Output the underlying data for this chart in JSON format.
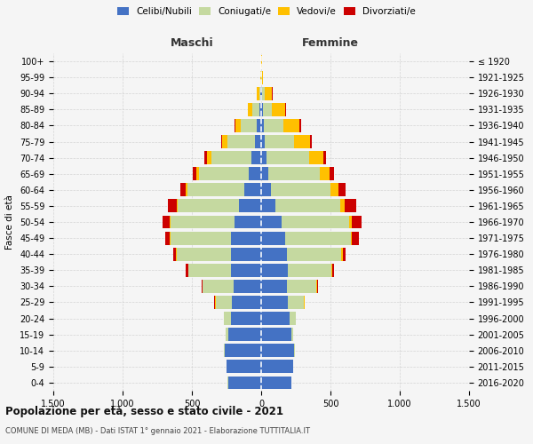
{
  "age_groups": [
    "0-4",
    "5-9",
    "10-14",
    "15-19",
    "20-24",
    "25-29",
    "30-34",
    "35-39",
    "40-44",
    "45-49",
    "50-54",
    "55-59",
    "60-64",
    "65-69",
    "70-74",
    "75-79",
    "80-84",
    "85-89",
    "90-94",
    "95-99",
    "100+"
  ],
  "birth_years": [
    "2016-2020",
    "2011-2015",
    "2006-2010",
    "2001-2005",
    "1996-2000",
    "1991-1995",
    "1986-1990",
    "1981-1985",
    "1976-1980",
    "1971-1975",
    "1966-1970",
    "1961-1965",
    "1956-1960",
    "1951-1955",
    "1946-1950",
    "1941-1945",
    "1936-1940",
    "1931-1935",
    "1926-1930",
    "1921-1925",
    "≤ 1920"
  ],
  "colors": {
    "celibe": "#4472c4",
    "coniugato": "#c5d9a0",
    "vedovo": "#ffc000",
    "divorziato": "#cc0000"
  },
  "maschi": {
    "celibe": [
      240,
      250,
      265,
      240,
      220,
      210,
      200,
      215,
      220,
      215,
      195,
      160,
      120,
      90,
      70,
      45,
      30,
      15,
      5,
      2,
      2
    ],
    "coniugato": [
      2,
      2,
      5,
      15,
      50,
      120,
      220,
      310,
      390,
      440,
      460,
      440,
      410,
      360,
      290,
      200,
      120,
      50,
      10,
      0,
      0
    ],
    "vedovo": [
      0,
      0,
      0,
      0,
      0,
      2,
      2,
      2,
      3,
      5,
      8,
      10,
      15,
      20,
      30,
      35,
      35,
      30,
      15,
      2,
      0
    ],
    "divorziato": [
      0,
      0,
      0,
      0,
      2,
      5,
      10,
      15,
      20,
      30,
      50,
      60,
      40,
      25,
      20,
      10,
      5,
      2,
      0,
      0,
      0
    ]
  },
  "femmine": {
    "nubile": [
      220,
      230,
      240,
      220,
      205,
      195,
      185,
      195,
      185,
      175,
      145,
      105,
      70,
      50,
      38,
      25,
      18,
      10,
      5,
      2,
      2
    ],
    "coniugata": [
      0,
      1,
      3,
      12,
      45,
      115,
      215,
      310,
      395,
      470,
      490,
      465,
      430,
      370,
      305,
      215,
      140,
      65,
      20,
      2,
      0
    ],
    "vedova": [
      0,
      0,
      0,
      0,
      1,
      2,
      3,
      5,
      7,
      12,
      20,
      35,
      55,
      75,
      105,
      115,
      120,
      100,
      55,
      10,
      2
    ],
    "divorziata": [
      0,
      0,
      0,
      0,
      1,
      3,
      8,
      15,
      25,
      45,
      70,
      80,
      55,
      30,
      20,
      12,
      8,
      5,
      2,
      0,
      0
    ]
  },
  "title": "Popolazione per età, sesso e stato civile - 2021",
  "subtitle": "COMUNE DI MEDA (MB) - Dati ISTAT 1° gennaio 2021 - Elaborazione TUTTITALIA.IT",
  "xlabel_maschi": "Maschi",
  "xlabel_femmine": "Femmine",
  "ylabel_left": "Fasce di età",
  "xlim": 1500,
  "xticks": [
    -1500,
    -1000,
    -500,
    0,
    500,
    1000,
    1500
  ],
  "xtick_labels": [
    "1.500",
    "1.000",
    "500",
    "0",
    "500",
    "1.000",
    "1.500"
  ],
  "bg_color": "#f5f5f5",
  "legend_items": [
    "Celibi/Nubili",
    "Coniugati/e",
    "Vedovi/e",
    "Divorziati/e"
  ],
  "legend_colors": [
    "#4472c4",
    "#c5d9a0",
    "#ffc000",
    "#cc0000"
  ]
}
